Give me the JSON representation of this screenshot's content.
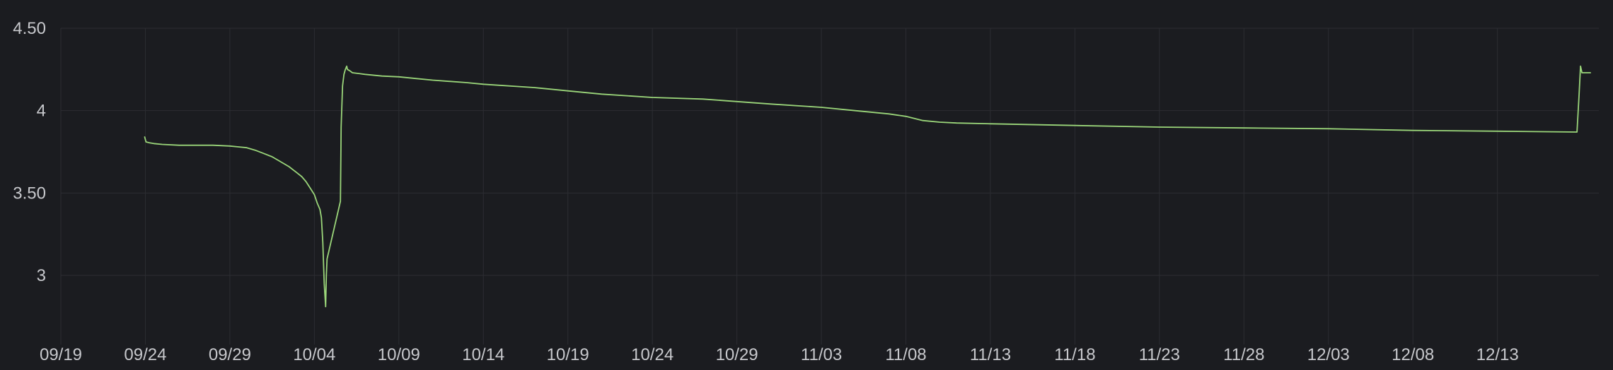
{
  "theme": {
    "background": "#1b1c20",
    "grid": "#2c2d32",
    "text": "#c7c8cc",
    "series_color": "#9bd67a"
  },
  "chart_data": {
    "type": "line",
    "title": "",
    "xlabel": "",
    "ylabel": "",
    "grid": true,
    "legend": "none",
    "x_ticks": [
      "09/19",
      "09/24",
      "09/29",
      "10/04",
      "10/09",
      "10/14",
      "10/19",
      "10/24",
      "10/29",
      "11/03",
      "11/08",
      "11/13",
      "11/18",
      "11/23",
      "11/28",
      "12/03",
      "12/08",
      "12/13"
    ],
    "y_ticks": [
      "4.50",
      "4",
      "3.50",
      "3"
    ],
    "xlim": [
      "09/19",
      "12/19"
    ],
    "ylim": [
      2.58,
      4.5
    ],
    "series": [
      {
        "x": [
          "09/23 23:00",
          "09/24 01:00",
          "09/24 06:00",
          "09/24 12:00",
          "09/25 00:00",
          "09/26 00:00",
          "09/27 00:00",
          "09/28 00:00",
          "09/29 00:00",
          "09/29 12:00",
          "09/30 00:00",
          "09/30 12:00",
          "10/01 00:00",
          "10/01 12:00",
          "10/02 00:00",
          "10/02 12:00",
          "10/03 00:00",
          "10/03 06:00",
          "10/03 12:00",
          "10/03 18:00",
          "10/04 00:00",
          "10/04 04:00",
          "10/04 08:00",
          "10/04 10:00",
          "10/04 12:00",
          "10/04 14:00",
          "10/04 16:00",
          "10/04 17:00",
          "10/04 18:00",
          "10/05 13:00",
          "10/05 14:00",
          "10/05 16:00",
          "10/05 18:00",
          "10/05 20:00",
          "10/05 22:00",
          "10/05 23:00",
          "10/06 03:00",
          "10/06 06:00",
          "10/07 00:00",
          "10/08 00:00",
          "10/09 00:00",
          "10/10 00:00",
          "10/11 00:00",
          "10/13 00:00",
          "10/14 00:00",
          "10/17 00:00",
          "10/19 00:00",
          "10/21 00:00",
          "10/24 00:00",
          "10/27 00:00",
          "10/29 00:00",
          "10/31 00:00",
          "11/03 00:00",
          "11/05 00:00",
          "11/07 00:00",
          "11/08 00:00",
          "11/09 00:00",
          "11/10 00:00",
          "11/11 00:00",
          "11/13 00:00",
          "11/18 00:00",
          "11/23 00:00",
          "11/28 00:00",
          "12/03 00:00",
          "12/08 00:00",
          "12/13 00:00",
          "12/17 17:00",
          "12/17 20:00",
          "12/17 22:00",
          "12/18 00:00",
          "12/18 02:00",
          "12/18 04:00",
          "12/18 12:00"
        ],
        "y": [
          3.84,
          3.81,
          3.805,
          3.8,
          3.795,
          3.79,
          3.79,
          3.79,
          3.785,
          3.78,
          3.775,
          3.76,
          3.74,
          3.72,
          3.69,
          3.66,
          3.62,
          3.6,
          3.57,
          3.53,
          3.49,
          3.44,
          3.4,
          3.35,
          3.2,
          2.95,
          2.81,
          3.0,
          3.1,
          3.45,
          3.9,
          4.15,
          4.22,
          4.25,
          4.27,
          4.25,
          4.24,
          4.23,
          4.22,
          4.21,
          4.205,
          4.195,
          4.185,
          4.17,
          4.16,
          4.14,
          4.12,
          4.1,
          4.08,
          4.07,
          4.055,
          4.04,
          4.02,
          4.0,
          3.98,
          3.965,
          3.94,
          3.93,
          3.925,
          3.92,
          3.91,
          3.9,
          3.895,
          3.89,
          3.88,
          3.875,
          3.87,
          4.1,
          4.27,
          4.23,
          4.23,
          4.23,
          4.23
        ]
      }
    ]
  }
}
